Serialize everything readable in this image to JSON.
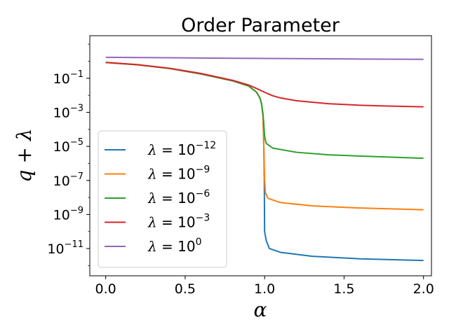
{
  "chart_data": {
    "type": "line",
    "title": "Order Parameter",
    "xlabel": "α",
    "ylabel": "q + λ",
    "xlim": [
      -0.1,
      2.05
    ],
    "ylim_log10": [
      -12.6,
      1.5
    ],
    "yscale": "log",
    "grid": false,
    "legend_position": "lower-left",
    "x_ticks": [
      0.0,
      0.5,
      1.0,
      1.5,
      2.0
    ],
    "x_tick_labels": [
      "0.0",
      "0.5",
      "1.0",
      "1.5",
      "2.0"
    ],
    "y_ticks_log10": [
      -1,
      -3,
      -5,
      -7,
      -9,
      -11
    ],
    "y_tick_labels": [
      {
        "base": "10",
        "exp": "−1"
      },
      {
        "base": "10",
        "exp": "−3"
      },
      {
        "base": "10",
        "exp": "−5"
      },
      {
        "base": "10",
        "exp": "−7"
      },
      {
        "base": "10",
        "exp": "−9"
      },
      {
        "base": "10",
        "exp": "−11"
      }
    ],
    "series": [
      {
        "name": "λ = 10^−12",
        "legend": {
          "lhs": "λ",
          "base": "10",
          "exp": "−12"
        },
        "color": "#1f77b4",
        "points": [
          [
            0.0,
            0.85
          ],
          [
            0.2,
            0.62
          ],
          [
            0.4,
            0.38
          ],
          [
            0.6,
            0.18
          ],
          [
            0.8,
            0.07
          ],
          [
            0.9,
            0.035
          ],
          [
            0.95,
            0.015
          ],
          [
            0.97,
            0.007
          ],
          [
            0.98,
            0.0035
          ],
          [
            0.99,
            0.0006
          ],
          [
            0.995,
            1e-05
          ],
          [
            0.998,
            1e-07
          ],
          [
            1.0,
            1e-10
          ],
          [
            1.01,
            3e-11
          ],
          [
            1.03,
            1e-11
          ],
          [
            1.1,
            6e-12
          ],
          [
            1.3,
            3.5e-12
          ],
          [
            1.6,
            2.5e-12
          ],
          [
            2.0,
            2e-12
          ]
        ]
      },
      {
        "name": "λ = 10^−9",
        "legend": {
          "lhs": "λ",
          "base": "10",
          "exp": "−9"
        },
        "color": "#ff7f0e",
        "points": [
          [
            0.0,
            0.85
          ],
          [
            0.2,
            0.62
          ],
          [
            0.4,
            0.38
          ],
          [
            0.6,
            0.18
          ],
          [
            0.8,
            0.07
          ],
          [
            0.9,
            0.035
          ],
          [
            0.95,
            0.015
          ],
          [
            0.97,
            0.007
          ],
          [
            0.98,
            0.0035
          ],
          [
            0.99,
            0.0006
          ],
          [
            0.995,
            1e-05
          ],
          [
            1.0,
            1e-07
          ],
          [
            1.005,
            2e-08
          ],
          [
            1.02,
            9e-09
          ],
          [
            1.1,
            5e-09
          ],
          [
            1.3,
            3.2e-09
          ],
          [
            1.6,
            2.4e-09
          ],
          [
            2.0,
            1.9e-09
          ]
        ]
      },
      {
        "name": "λ = 10^−6",
        "legend": {
          "lhs": "λ",
          "base": "10",
          "exp": "−6"
        },
        "color": "#2ca02c",
        "points": [
          [
            0.0,
            0.85
          ],
          [
            0.2,
            0.62
          ],
          [
            0.4,
            0.38
          ],
          [
            0.6,
            0.18
          ],
          [
            0.8,
            0.07
          ],
          [
            0.9,
            0.035
          ],
          [
            0.95,
            0.015
          ],
          [
            0.97,
            0.007
          ],
          [
            0.98,
            0.0035
          ],
          [
            0.99,
            0.0008
          ],
          [
            0.995,
            0.0002
          ],
          [
            1.0,
            4e-05
          ],
          [
            1.01,
            1.5e-05
          ],
          [
            1.05,
            8e-06
          ],
          [
            1.2,
            4.5e-06
          ],
          [
            1.4,
            3.2e-06
          ],
          [
            1.7,
            2.5e-06
          ],
          [
            2.0,
            2e-06
          ]
        ]
      },
      {
        "name": "λ = 10^−3",
        "legend": {
          "lhs": "λ",
          "base": "10",
          "exp": "−3"
        },
        "color": "#d62728",
        "points": [
          [
            0.0,
            0.86
          ],
          [
            0.2,
            0.63
          ],
          [
            0.4,
            0.39
          ],
          [
            0.6,
            0.19
          ],
          [
            0.8,
            0.075
          ],
          [
            0.9,
            0.04
          ],
          [
            0.95,
            0.025
          ],
          [
            1.0,
            0.015
          ],
          [
            1.05,
            0.0095
          ],
          [
            1.1,
            0.007
          ],
          [
            1.2,
            0.0048
          ],
          [
            1.4,
            0.0032
          ],
          [
            1.6,
            0.0026
          ],
          [
            1.8,
            0.0023
          ],
          [
            2.0,
            0.0021
          ]
        ]
      },
      {
        "name": "λ = 10^0",
        "legend": {
          "lhs": "λ",
          "base": "10",
          "exp": "0"
        },
        "color": "#9467bd",
        "points": [
          [
            0.0,
            1.7
          ],
          [
            0.4,
            1.6
          ],
          [
            0.8,
            1.5
          ],
          [
            1.2,
            1.42
          ],
          [
            1.6,
            1.35
          ],
          [
            2.0,
            1.3
          ]
        ]
      }
    ]
  }
}
